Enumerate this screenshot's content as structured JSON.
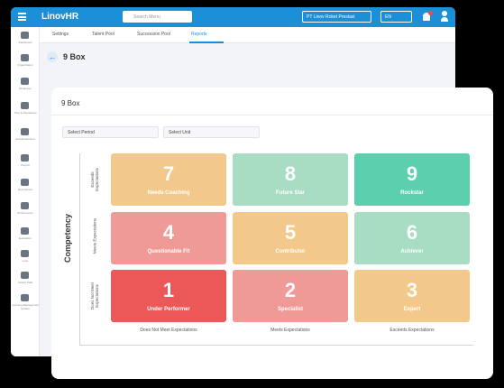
{
  "app": {
    "logo": "LinovHR",
    "search_placeholder": "Search Menu",
    "company": "PT Linov Roket Prestasi",
    "language": "EN"
  },
  "sidebar": [
    "Dashboard",
    "Organization",
    "Employee",
    "Time & Attendance",
    "Reimbursement",
    "Payroll",
    "Recruitment",
    "Performance",
    "Evaluation",
    "Loan",
    "Career Path",
    "Learning Management System"
  ],
  "tabs": [
    "Settings",
    "Talent Pool",
    "Succession Pool",
    "Reports"
  ],
  "page_title": "9 Box",
  "card": {
    "title": "9 Box",
    "filters": [
      "Select Period",
      "Select Unit"
    ],
    "y_axis_label": "Competency",
    "row_labels": [
      "Exceeds Expectations",
      "Meets Expectations",
      "Does Not Meet Expectations"
    ],
    "column_labels": [
      "Does Not Meet Expectations",
      "Meets Expectations",
      "Exceeds Expectations"
    ],
    "boxes": [
      [
        {
          "number": 7,
          "label": "Needs Coaching",
          "color": "#f2c98a"
        },
        {
          "number": 8,
          "label": "Future Star",
          "color": "#a8dcc3"
        },
        {
          "number": 9,
          "label": "Rockstar",
          "color": "#5ccfae"
        }
      ],
      [
        {
          "number": 4,
          "label": "Questionable Fit",
          "color": "#ef9a96"
        },
        {
          "number": 5,
          "label": "Contributor",
          "color": "#f2c98a"
        },
        {
          "number": 6,
          "label": "Achiever",
          "color": "#a8dcc3"
        }
      ],
      [
        {
          "number": 1,
          "label": "Under Performer",
          "color": "#ec5858"
        },
        {
          "number": 2,
          "label": "Specialist",
          "color": "#ef9a96"
        },
        {
          "number": 3,
          "label": "Expert",
          "color": "#f2c98a"
        }
      ]
    ]
  }
}
